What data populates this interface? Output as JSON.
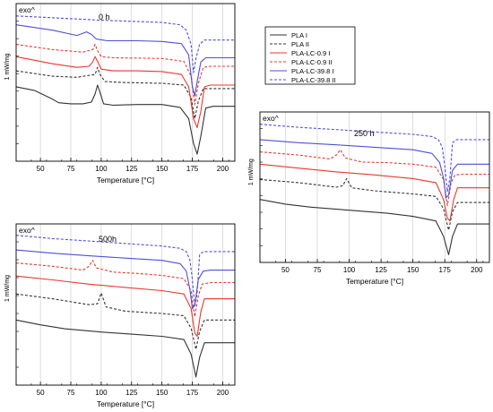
{
  "chart_data": [
    {
      "type": "line",
      "title": "0 h",
      "xlabel": "Temperature [°C]",
      "ylabel": "1 mW/mg",
      "corner_label": "exo^",
      "xlim": [
        30,
        210
      ],
      "xticks": [
        50,
        75,
        100,
        125,
        150,
        175,
        200
      ],
      "grid": "vertical",
      "series": [
        {
          "name": "PLA I",
          "color": "#333333",
          "dash": false,
          "x": [
            30,
            45,
            60,
            65,
            75,
            85,
            92,
            95,
            97,
            99,
            102,
            110,
            130,
            150,
            165,
            172,
            176,
            179,
            182,
            186,
            192,
            210
          ],
          "y": [
            -0.6,
            -0.7,
            -0.95,
            -1.05,
            -1.08,
            -1.08,
            -1.03,
            -0.8,
            -0.55,
            -0.75,
            -1.08,
            -1.12,
            -1.1,
            -1.1,
            -1.18,
            -1.5,
            -2.2,
            -2.5,
            -2.0,
            -1.2,
            -1.15,
            -1.15
          ]
        },
        {
          "name": "PLA II",
          "color": "#333333",
          "dash": true,
          "x": [
            30,
            60,
            80,
            95,
            97,
            99,
            103,
            120,
            150,
            168,
            174,
            177,
            180,
            184,
            190,
            210
          ],
          "y": [
            -0.15,
            -0.3,
            -0.33,
            -0.25,
            -0.05,
            -0.25,
            -0.45,
            -0.48,
            -0.5,
            -0.55,
            -0.9,
            -1.5,
            -1.0,
            -0.65,
            -0.65,
            -0.65
          ]
        },
        {
          "name": "PLA-LC-0.9 I",
          "color": "#e8382f",
          "dash": false,
          "x": [
            30,
            60,
            80,
            90,
            93,
            95,
            97,
            100,
            110,
            130,
            150,
            166,
            172,
            176,
            179,
            182,
            185,
            190,
            210
          ],
          "y": [
            0.25,
            0.05,
            -0.05,
            -0.02,
            0.1,
            0.25,
            0.12,
            -0.1,
            -0.15,
            -0.15,
            -0.17,
            -0.25,
            -0.6,
            -1.5,
            -1.75,
            -1.3,
            -0.6,
            -0.55,
            -0.55
          ]
        },
        {
          "name": "PLA-LC-0.9 II",
          "color": "#e8382f",
          "dash": true,
          "x": [
            30,
            60,
            85,
            93,
            95,
            97,
            100,
            110,
            150,
            168,
            174,
            177,
            180,
            184,
            190,
            210
          ],
          "y": [
            0.6,
            0.45,
            0.38,
            0.45,
            0.6,
            0.42,
            0.25,
            0.22,
            0.2,
            0.12,
            -0.3,
            -1.1,
            -0.5,
            -0.05,
            -0.02,
            -0.02
          ]
        },
        {
          "name": "PLA-LC-39.8 I",
          "color": "#4f4fd6",
          "dash": false,
          "x": [
            30,
            60,
            80,
            88,
            92,
            96,
            105,
            130,
            150,
            166,
            172,
            175,
            177,
            179,
            182,
            186,
            192,
            210
          ],
          "y": [
            1.15,
            1.0,
            0.85,
            0.95,
            0.88,
            0.75,
            0.7,
            0.7,
            0.68,
            0.62,
            0.3,
            -0.6,
            -0.85,
            -0.45,
            0.1,
            0.22,
            0.22,
            0.22
          ]
        },
        {
          "name": "PLA-LC-39.8 II",
          "color": "#4f4fd6",
          "dash": true,
          "x": [
            30,
            60,
            100,
            150,
            165,
            170,
            174,
            176,
            178,
            181,
            185,
            190,
            210
          ],
          "y": [
            1.4,
            1.35,
            1.28,
            1.22,
            1.15,
            1.0,
            0.6,
            -0.2,
            0.2,
            0.6,
            0.72,
            0.72,
            0.72
          ]
        }
      ]
    },
    {
      "type": "line",
      "title": "250 h",
      "xlabel": "Temperature [°C]",
      "ylabel": "1 mW/mg",
      "corner_label": "exo^",
      "xlim": [
        30,
        210
      ],
      "xticks": [
        50,
        75,
        100,
        125,
        150,
        175,
        200
      ],
      "grid": "vertical",
      "series": [
        {
          "name": "PLA I",
          "color": "#333333",
          "dash": false,
          "x": [
            30,
            50,
            70,
            100,
            130,
            150,
            168,
            174,
            178,
            181,
            185,
            190,
            210
          ],
          "y": [
            -0.5,
            -0.65,
            -0.75,
            -0.85,
            -0.95,
            -1.05,
            -1.2,
            -1.7,
            -2.3,
            -1.7,
            -1.3,
            -1.3,
            -1.3
          ]
        },
        {
          "name": "PLA II",
          "color": "#333333",
          "dash": true,
          "x": [
            30,
            60,
            90,
            95,
            98,
            102,
            120,
            150,
            168,
            174,
            178,
            181,
            185,
            190,
            210
          ],
          "y": [
            0.15,
            0.05,
            -0.1,
            -0.05,
            0.18,
            -0.12,
            -0.22,
            -0.32,
            -0.4,
            -0.8,
            -1.5,
            -0.9,
            -0.6,
            -0.6,
            -0.6
          ]
        },
        {
          "name": "PLA-LC-0.9 I",
          "color": "#e8382f",
          "dash": false,
          "x": [
            30,
            60,
            90,
            120,
            150,
            168,
            174,
            177,
            179,
            182,
            185,
            190,
            210
          ],
          "y": [
            0.65,
            0.52,
            0.4,
            0.3,
            0.18,
            0.05,
            -0.5,
            -1.1,
            -1.2,
            -0.5,
            -0.12,
            -0.12,
            -0.12
          ]
        },
        {
          "name": "PLA-LC-0.9 II",
          "color": "#e8382f",
          "dash": true,
          "x": [
            30,
            60,
            85,
            90,
            93,
            97,
            110,
            130,
            150,
            168,
            174,
            177,
            180,
            183,
            190,
            210
          ],
          "y": [
            1.05,
            0.95,
            0.82,
            0.95,
            1.12,
            0.85,
            0.72,
            0.7,
            0.65,
            0.55,
            0.15,
            -0.7,
            0.05,
            0.3,
            0.32,
            0.32
          ]
        },
        {
          "name": "PLA-LC-39.8 I",
          "color": "#4f4fd6",
          "dash": false,
          "x": [
            30,
            60,
            90,
            120,
            150,
            165,
            171,
            174,
            176,
            178,
            181,
            185,
            190,
            210
          ],
          "y": [
            1.45,
            1.35,
            1.28,
            1.2,
            1.12,
            1.0,
            0.7,
            0.2,
            -0.45,
            -0.35,
            0.45,
            0.65,
            0.65,
            0.65
          ]
        },
        {
          "name": "PLA-LC-39.8 II",
          "color": "#4f4fd6",
          "dash": true,
          "x": [
            30,
            60,
            100,
            150,
            165,
            170,
            173,
            175,
            177,
            179,
            181,
            184,
            190,
            210
          ],
          "y": [
            1.95,
            1.85,
            1.75,
            1.62,
            1.55,
            1.45,
            1.2,
            0.6,
            -0.25,
            0.2,
            1.35,
            1.45,
            1.45,
            1.45
          ]
        }
      ]
    },
    {
      "type": "line",
      "title": "500h",
      "xlabel": "Temperature [°C]",
      "ylabel": "1 mW/mg",
      "corner_label": "exo^",
      "xlim": [
        30,
        210
      ],
      "xticks": [
        50,
        75,
        100,
        125,
        150,
        175,
        200
      ],
      "grid": "vertical",
      "series": [
        {
          "name": "PLA I",
          "color": "#333333",
          "dash": false,
          "x": [
            30,
            50,
            70,
            100,
            130,
            150,
            168,
            174,
            178,
            181,
            185,
            190,
            210
          ],
          "y": [
            -0.55,
            -0.7,
            -0.82,
            -0.92,
            -1.0,
            -1.05,
            -1.15,
            -1.6,
            -2.3,
            -1.7,
            -1.25,
            -1.25,
            -1.25
          ]
        },
        {
          "name": "PLA II",
          "color": "#333333",
          "dash": true,
          "x": [
            30,
            60,
            90,
            97,
            100,
            104,
            120,
            150,
            168,
            174,
            178,
            181,
            185,
            190,
            210
          ],
          "y": [
            0.25,
            0.1,
            -0.08,
            -0.05,
            0.28,
            -0.15,
            -0.28,
            -0.35,
            -0.42,
            -0.8,
            -1.45,
            -0.9,
            -0.55,
            -0.55,
            -0.55
          ]
        },
        {
          "name": "PLA-LC-0.9 I",
          "color": "#e8382f",
          "dash": false,
          "x": [
            30,
            60,
            90,
            120,
            150,
            168,
            174,
            177,
            179,
            182,
            185,
            190,
            210
          ],
          "y": [
            0.8,
            0.68,
            0.55,
            0.45,
            0.35,
            0.25,
            -0.2,
            -0.95,
            -1.05,
            -0.3,
            0.1,
            0.1,
            0.1
          ]
        },
        {
          "name": "PLA-LC-0.9 II",
          "color": "#e8382f",
          "dash": true,
          "x": [
            30,
            60,
            85,
            90,
            93,
            96,
            110,
            130,
            150,
            168,
            174,
            177,
            180,
            183,
            190,
            210
          ],
          "y": [
            1.2,
            1.1,
            0.98,
            1.1,
            1.28,
            1.05,
            0.92,
            0.88,
            0.82,
            0.72,
            0.35,
            -0.45,
            0.2,
            0.55,
            0.6,
            0.6
          ]
        },
        {
          "name": "PLA-LC-39.8 I",
          "color": "#4f4fd6",
          "dash": false,
          "x": [
            30,
            60,
            90,
            120,
            150,
            165,
            170,
            173,
            175,
            177,
            180,
            184,
            190,
            210
          ],
          "y": [
            1.6,
            1.5,
            1.42,
            1.35,
            1.28,
            1.18,
            0.95,
            0.4,
            -0.2,
            -0.1,
            0.7,
            0.95,
            0.98,
            0.98
          ]
        },
        {
          "name": "PLA-LC-39.8 II",
          "color": "#4f4fd6",
          "dash": true,
          "x": [
            30,
            60,
            100,
            150,
            165,
            170,
            173,
            175,
            177,
            179,
            181,
            184,
            190,
            210
          ],
          "y": [
            2.05,
            1.95,
            1.85,
            1.72,
            1.65,
            1.55,
            1.3,
            0.7,
            -0.15,
            0.3,
            1.45,
            1.55,
            1.55,
            1.55
          ]
        }
      ]
    }
  ],
  "legend": {
    "placement": "top-center",
    "entries": [
      {
        "name": "PLA I",
        "color": "#333333",
        "dash": false
      },
      {
        "name": "PLA II",
        "color": "#333333",
        "dash": true
      },
      {
        "name": "PLA-LC-0.9 I",
        "color": "#e8382f",
        "dash": false
      },
      {
        "name": "PLA-LC-0.9 II",
        "color": "#e8382f",
        "dash": true
      },
      {
        "name": "PLA-LC-39.8 I",
        "color": "#4f4fd6",
        "dash": false
      },
      {
        "name": "PLA-LC-39.8 II",
        "color": "#4f4fd6",
        "dash": true
      }
    ]
  }
}
